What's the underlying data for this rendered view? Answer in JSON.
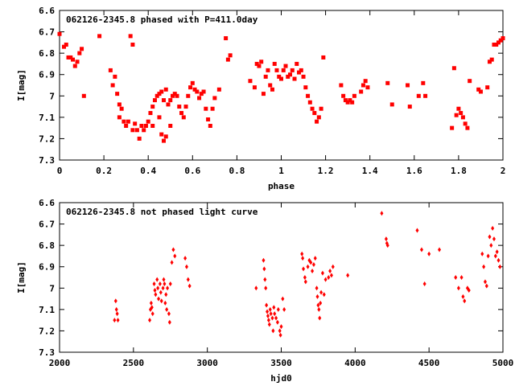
{
  "chart_data": [
    {
      "type": "scatter",
      "title": "062126-2345.8 phased with P=411.0day",
      "xlabel": "phase",
      "ylabel": "I[mag]",
      "xlim": [
        0,
        2
      ],
      "ylim": [
        6.6,
        7.3
      ],
      "y_inverted": true,
      "x_ticks": [
        "0",
        "0.2",
        "0.4",
        "0.6",
        "0.8",
        "1",
        "1.2",
        "1.4",
        "1.6",
        "1.8",
        "2"
      ],
      "y_ticks": [
        "6.6",
        "6.7",
        "6.8",
        "6.9",
        "7",
        "7.1",
        "7.2",
        "7.3"
      ],
      "marker_color": "#ff0000",
      "points": [
        [
          0.0,
          6.71
        ],
        [
          0.02,
          6.77
        ],
        [
          0.03,
          6.76
        ],
        [
          0.04,
          6.82
        ],
        [
          0.05,
          6.82
        ],
        [
          0.06,
          6.83
        ],
        [
          0.07,
          6.86
        ],
        [
          0.08,
          6.84
        ],
        [
          0.09,
          6.8
        ],
        [
          0.1,
          6.78
        ],
        [
          0.11,
          7.0
        ],
        [
          0.18,
          6.72
        ],
        [
          0.23,
          6.88
        ],
        [
          0.24,
          6.95
        ],
        [
          0.25,
          6.91
        ],
        [
          0.26,
          6.99
        ],
        [
          0.27,
          7.04
        ],
        [
          0.27,
          7.1
        ],
        [
          0.28,
          7.06
        ],
        [
          0.29,
          7.12
        ],
        [
          0.3,
          7.14
        ],
        [
          0.31,
          7.12
        ],
        [
          0.32,
          6.72
        ],
        [
          0.33,
          6.76
        ],
        [
          0.33,
          7.16
        ],
        [
          0.34,
          7.13
        ],
        [
          0.35,
          7.16
        ],
        [
          0.36,
          7.2
        ],
        [
          0.37,
          7.14
        ],
        [
          0.38,
          7.16
        ],
        [
          0.39,
          7.14
        ],
        [
          0.4,
          7.12
        ],
        [
          0.41,
          7.08
        ],
        [
          0.42,
          7.05
        ],
        [
          0.42,
          7.14
        ],
        [
          0.43,
          7.02
        ],
        [
          0.44,
          7.0
        ],
        [
          0.45,
          6.99
        ],
        [
          0.45,
          7.1
        ],
        [
          0.46,
          6.98
        ],
        [
          0.46,
          7.18
        ],
        [
          0.47,
          7.02
        ],
        [
          0.47,
          7.21
        ],
        [
          0.48,
          6.97
        ],
        [
          0.48,
          7.19
        ],
        [
          0.49,
          7.04
        ],
        [
          0.5,
          7.02
        ],
        [
          0.5,
          7.14
        ],
        [
          0.51,
          7.0
        ],
        [
          0.52,
          6.99
        ],
        [
          0.53,
          7.0
        ],
        [
          0.54,
          7.05
        ],
        [
          0.55,
          7.08
        ],
        [
          0.56,
          7.1
        ],
        [
          0.57,
          7.05
        ],
        [
          0.58,
          7.0
        ],
        [
          0.59,
          6.96
        ],
        [
          0.6,
          6.94
        ],
        [
          0.61,
          6.97
        ],
        [
          0.62,
          6.98
        ],
        [
          0.63,
          7.01
        ],
        [
          0.64,
          6.99
        ],
        [
          0.65,
          6.98
        ],
        [
          0.66,
          7.06
        ],
        [
          0.67,
          7.11
        ],
        [
          0.68,
          7.14
        ],
        [
          0.69,
          7.06
        ],
        [
          0.7,
          7.01
        ],
        [
          0.72,
          6.97
        ],
        [
          0.75,
          6.73
        ],
        [
          0.76,
          6.83
        ],
        [
          0.77,
          6.81
        ],
        [
          0.86,
          6.93
        ],
        [
          0.88,
          6.96
        ],
        [
          0.89,
          6.85
        ],
        [
          0.9,
          6.86
        ],
        [
          0.91,
          6.84
        ],
        [
          0.92,
          6.99
        ],
        [
          0.93,
          6.91
        ],
        [
          0.94,
          6.88
        ],
        [
          0.95,
          6.95
        ],
        [
          0.96,
          6.97
        ],
        [
          0.97,
          6.85
        ],
        [
          0.98,
          6.88
        ],
        [
          0.99,
          6.91
        ],
        [
          1.0,
          6.92
        ],
        [
          1.01,
          6.88
        ],
        [
          1.02,
          6.86
        ],
        [
          1.03,
          6.91
        ],
        [
          1.04,
          6.9
        ],
        [
          1.05,
          6.88
        ],
        [
          1.06,
          6.92
        ],
        [
          1.07,
          6.85
        ],
        [
          1.08,
          6.89
        ],
        [
          1.09,
          6.88
        ],
        [
          1.1,
          6.91
        ],
        [
          1.11,
          6.96
        ],
        [
          1.12,
          7.0
        ],
        [
          1.13,
          7.03
        ],
        [
          1.14,
          7.06
        ],
        [
          1.15,
          7.08
        ],
        [
          1.16,
          7.12
        ],
        [
          1.17,
          7.1
        ],
        [
          1.18,
          7.06
        ],
        [
          1.19,
          6.82
        ],
        [
          1.27,
          6.95
        ],
        [
          1.28,
          7.0
        ],
        [
          1.29,
          7.02
        ],
        [
          1.3,
          7.03
        ],
        [
          1.31,
          7.02
        ],
        [
          1.32,
          7.03
        ],
        [
          1.33,
          7.0
        ],
        [
          1.36,
          6.98
        ],
        [
          1.37,
          6.95
        ],
        [
          1.38,
          6.93
        ],
        [
          1.39,
          6.96
        ],
        [
          1.48,
          6.94
        ],
        [
          1.5,
          7.04
        ],
        [
          1.57,
          6.95
        ],
        [
          1.58,
          7.05
        ],
        [
          1.62,
          7.0
        ],
        [
          1.64,
          6.94
        ],
        [
          1.65,
          7.0
        ],
        [
          1.77,
          7.15
        ],
        [
          1.78,
          6.87
        ],
        [
          1.79,
          7.09
        ],
        [
          1.8,
          7.06
        ],
        [
          1.81,
          7.08
        ],
        [
          1.82,
          7.1
        ],
        [
          1.83,
          7.13
        ],
        [
          1.84,
          7.15
        ],
        [
          1.85,
          6.93
        ],
        [
          1.89,
          6.97
        ],
        [
          1.9,
          6.98
        ],
        [
          1.93,
          6.96
        ],
        [
          1.94,
          6.84
        ],
        [
          1.95,
          6.83
        ],
        [
          1.96,
          6.76
        ],
        [
          1.97,
          6.76
        ],
        [
          1.98,
          6.75
        ],
        [
          1.99,
          6.74
        ],
        [
          2.0,
          6.73
        ]
      ]
    },
    {
      "type": "scatter",
      "title": "062126-2345.8 not phased light curve",
      "xlabel": "hjd0",
      "ylabel": "I[mag]",
      "xlim": [
        2000,
        5000
      ],
      "ylim": [
        6.6,
        7.3
      ],
      "y_inverted": true,
      "x_ticks": [
        "2000",
        "2500",
        "3000",
        "3500",
        "4000",
        "4500",
        "5000"
      ],
      "y_ticks": [
        "6.6",
        "6.7",
        "6.8",
        "6.9",
        "7",
        "7.1",
        "7.2",
        "7.3"
      ],
      "marker_color": "#ff0000",
      "points": [
        [
          2372,
          7.15
        ],
        [
          2380,
          7.06
        ],
        [
          2385,
          7.1
        ],
        [
          2390,
          7.12
        ],
        [
          2395,
          7.15
        ],
        [
          2610,
          7.15
        ],
        [
          2615,
          7.1
        ],
        [
          2620,
          7.07
        ],
        [
          2625,
          7.09
        ],
        [
          2630,
          7.12
        ],
        [
          2640,
          6.98
        ],
        [
          2645,
          7.01
        ],
        [
          2650,
          7.03
        ],
        [
          2660,
          6.96
        ],
        [
          2665,
          7.0
        ],
        [
          2670,
          7.05
        ],
        [
          2680,
          6.98
        ],
        [
          2685,
          7.02
        ],
        [
          2690,
          7.06
        ],
        [
          2700,
          7.0
        ],
        [
          2705,
          6.96
        ],
        [
          2710,
          6.98
        ],
        [
          2715,
          7.07
        ],
        [
          2720,
          7.03
        ],
        [
          2725,
          7.1
        ],
        [
          2730,
          7.0
        ],
        [
          2740,
          7.12
        ],
        [
          2745,
          7.16
        ],
        [
          2750,
          6.98
        ],
        [
          2760,
          6.88
        ],
        [
          2770,
          6.82
        ],
        [
          2780,
          6.85
        ],
        [
          2850,
          6.86
        ],
        [
          2860,
          6.9
        ],
        [
          2870,
          6.96
        ],
        [
          2880,
          6.99
        ],
        [
          3330,
          7.0
        ],
        [
          3380,
          6.87
        ],
        [
          3385,
          6.91
        ],
        [
          3390,
          6.96
        ],
        [
          3395,
          7.0
        ],
        [
          3400,
          7.08
        ],
        [
          3405,
          7.11
        ],
        [
          3410,
          7.13
        ],
        [
          3415,
          7.15
        ],
        [
          3420,
          7.17
        ],
        [
          3425,
          7.1
        ],
        [
          3430,
          7.12
        ],
        [
          3440,
          7.14
        ],
        [
          3445,
          7.2
        ],
        [
          3450,
          7.09
        ],
        [
          3455,
          7.12
        ],
        [
          3465,
          7.14
        ],
        [
          3475,
          7.16
        ],
        [
          3480,
          7.1
        ],
        [
          3490,
          7.2
        ],
        [
          3495,
          7.22
        ],
        [
          3500,
          7.18
        ],
        [
          3510,
          7.05
        ],
        [
          3520,
          7.1
        ],
        [
          3640,
          6.84
        ],
        [
          3645,
          6.86
        ],
        [
          3650,
          6.91
        ],
        [
          3660,
          6.95
        ],
        [
          3665,
          6.97
        ],
        [
          3680,
          6.9
        ],
        [
          3690,
          6.87
        ],
        [
          3700,
          6.88
        ],
        [
          3710,
          6.92
        ],
        [
          3720,
          6.89
        ],
        [
          3730,
          6.86
        ],
        [
          3740,
          7.0
        ],
        [
          3745,
          7.04
        ],
        [
          3750,
          7.08
        ],
        [
          3755,
          7.1
        ],
        [
          3760,
          7.14
        ],
        [
          3765,
          7.07
        ],
        [
          3770,
          7.02
        ],
        [
          3780,
          6.93
        ],
        [
          3790,
          7.03
        ],
        [
          3800,
          6.96
        ],
        [
          3820,
          6.95
        ],
        [
          3830,
          6.92
        ],
        [
          3840,
          6.94
        ],
        [
          3850,
          6.9
        ],
        [
          3950,
          6.94
        ],
        [
          4180,
          6.65
        ],
        [
          4210,
          6.77
        ],
        [
          4215,
          6.79
        ],
        [
          4220,
          6.8
        ],
        [
          4420,
          6.73
        ],
        [
          4450,
          6.82
        ],
        [
          4470,
          6.98
        ],
        [
          4500,
          6.84
        ],
        [
          4570,
          6.82
        ],
        [
          4680,
          6.95
        ],
        [
          4700,
          7.0
        ],
        [
          4720,
          6.95
        ],
        [
          4730,
          7.04
        ],
        [
          4740,
          7.06
        ],
        [
          4760,
          7.0
        ],
        [
          4770,
          7.01
        ],
        [
          4860,
          6.84
        ],
        [
          4870,
          6.9
        ],
        [
          4880,
          6.97
        ],
        [
          4890,
          6.99
        ],
        [
          4900,
          6.85
        ],
        [
          4910,
          6.76
        ],
        [
          4920,
          6.8
        ],
        [
          4930,
          6.72
        ],
        [
          4940,
          6.77
        ],
        [
          4950,
          6.85
        ],
        [
          4960,
          6.83
        ],
        [
          4970,
          6.87
        ],
        [
          4980,
          6.9
        ]
      ]
    }
  ]
}
